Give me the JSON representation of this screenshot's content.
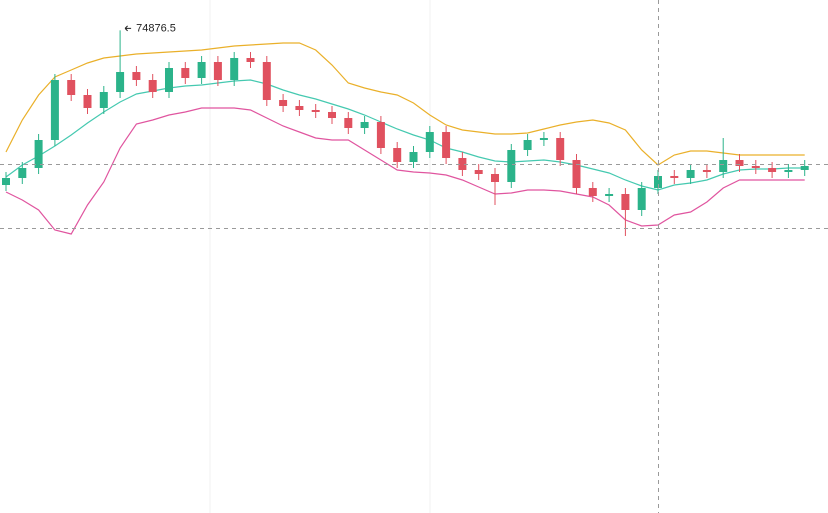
{
  "chart_data": {
    "type": "candlestick",
    "ylim": [
      70050,
      75180
    ],
    "up_color": "#2bb38a",
    "down_color": "#e0515f",
    "open": [
      73330,
      73400,
      73500,
      73780,
      74380,
      74230,
      74100,
      74260,
      74460,
      74380,
      74260,
      74500,
      74400,
      74560,
      74380,
      74600,
      74560,
      74180,
      74120,
      74080,
      74060,
      74000,
      73900,
      73960,
      73700,
      73560,
      73660,
      73860,
      73600,
      73480,
      73440,
      73360,
      73680,
      73780,
      73800,
      73580,
      73300,
      73220,
      73240,
      73080,
      73300,
      73420,
      73400,
      73480,
      73460,
      73580,
      73520,
      73500,
      73460,
      73480
    ],
    "high": [
      73460,
      73560,
      73840,
      74440,
      74440,
      74290,
      74320,
      74876.5,
      74520,
      74440,
      74560,
      74560,
      74620,
      74620,
      74660,
      74660,
      74620,
      74240,
      74180,
      74140,
      74120,
      74060,
      74020,
      74020,
      73760,
      73720,
      73920,
      73920,
      73660,
      73540,
      73500,
      73740,
      73840,
      73860,
      73860,
      73640,
      73360,
      73300,
      73300,
      73360,
      73480,
      73480,
      73540,
      73540,
      73800,
      73640,
      73580,
      73560,
      73540,
      73580
    ],
    "low": [
      73270,
      73340,
      73440,
      73720,
      74170,
      74040,
      74040,
      74200,
      74320,
      74200,
      74200,
      74340,
      74340,
      74320,
      74320,
      74500,
      74120,
      74060,
      74020,
      74000,
      73940,
      73840,
      73840,
      73640,
      73500,
      73500,
      73600,
      73540,
      73420,
      73380,
      73130,
      73300,
      73620,
      73720,
      73520,
      73240,
      73160,
      73160,
      72820,
      73020,
      73240,
      73340,
      73340,
      73400,
      73400,
      73460,
      73440,
      73400,
      73400,
      73420
    ],
    "close": [
      73400,
      73500,
      73780,
      74380,
      74230,
      74100,
      74260,
      74460,
      74380,
      74260,
      74500,
      74400,
      74560,
      74380,
      74600,
      74560,
      74180,
      74120,
      74080,
      74060,
      74000,
      73900,
      73960,
      73700,
      73560,
      73660,
      73860,
      73600,
      73480,
      73440,
      73360,
      73680,
      73780,
      73800,
      73580,
      73300,
      73220,
      73240,
      73080,
      73300,
      73420,
      73400,
      73480,
      73460,
      73580,
      73520,
      73500,
      73460,
      73480,
      73520
    ],
    "bands": [
      {
        "color": "#eab02a",
        "values": [
          73660,
          73980,
          74230,
          74410,
          74480,
          74550,
          74600,
          74620,
          74640,
          74650,
          74660,
          74670,
          74680,
          74700,
          74720,
          74730,
          74740,
          74750,
          74750,
          74680,
          74530,
          74350,
          74300,
          74260,
          74230,
          74150,
          74030,
          73930,
          73880,
          73860,
          73840,
          73840,
          73850,
          73890,
          73930,
          73960,
          73980,
          73950,
          73880,
          73680,
          73530,
          73630,
          73670,
          73670,
          73650,
          73630,
          73630,
          73630,
          73630,
          73630
        ]
      },
      {
        "color": "#45c9b0",
        "values": [
          73410,
          73530,
          73620,
          73720,
          73830,
          73950,
          74060,
          74160,
          74240,
          74270,
          74300,
          74320,
          74330,
          74350,
          74370,
          74380,
          74340,
          74280,
          74230,
          74190,
          74140,
          74090,
          74030,
          73960,
          73890,
          73830,
          73780,
          73700,
          73660,
          73610,
          73570,
          73560,
          73570,
          73580,
          73560,
          73530,
          73490,
          73450,
          73380,
          73320,
          73280,
          73330,
          73350,
          73380,
          73440,
          73480,
          73490,
          73490,
          73500,
          73500
        ]
      },
      {
        "color": "#e0559f",
        "values": [
          73260,
          73180,
          73080,
          72880,
          72840,
          73130,
          73360,
          73700,
          73940,
          73980,
          74030,
          74060,
          74100,
          74100,
          74100,
          74080,
          74000,
          73920,
          73860,
          73800,
          73780,
          73780,
          73680,
          73580,
          73480,
          73460,
          73450,
          73430,
          73380,
          73310,
          73240,
          73250,
          73280,
          73280,
          73270,
          73240,
          73210,
          73130,
          72980,
          72920,
          72930,
          73030,
          73060,
          73160,
          73300,
          73380,
          73380,
          73380,
          73380,
          73380
        ]
      }
    ]
  }
}
